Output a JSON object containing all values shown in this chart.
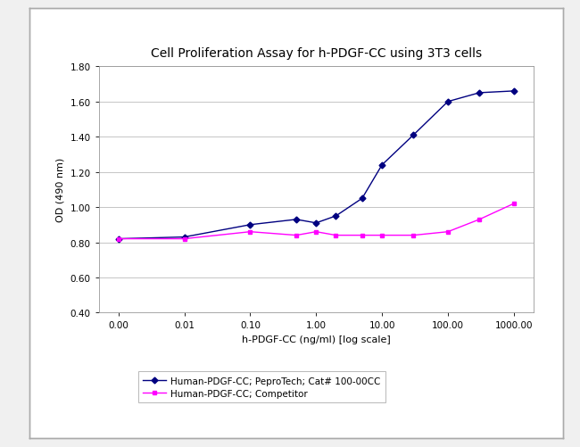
{
  "title": "Cell Proliferation Assay for h-PDGF-CC using 3T3 cells",
  "xlabel": "h-PDGF-CC (ng/ml) [log scale]",
  "ylabel": "OD (490 nm)",
  "series1_label": "Human-PDGF-CC; PeproTech; Cat# 100-00CC",
  "series2_label": "Human-PDGF-CC; Competitor",
  "series1_color": "#000080",
  "series2_color": "#FF00FF",
  "series1_x": [
    0.0,
    0.01,
    0.1,
    0.5,
    1.0,
    2.0,
    5.0,
    10.0,
    30.0,
    100.0,
    300.0,
    1000.0
  ],
  "series1_y": [
    0.82,
    0.83,
    0.9,
    0.93,
    0.91,
    0.95,
    1.05,
    1.24,
    1.41,
    1.6,
    1.65,
    1.66
  ],
  "series2_x": [
    0.0,
    0.01,
    0.1,
    0.5,
    1.0,
    2.0,
    5.0,
    10.0,
    30.0,
    100.0,
    300.0,
    1000.0
  ],
  "series2_y": [
    0.82,
    0.82,
    0.86,
    0.84,
    0.86,
    0.84,
    0.84,
    0.84,
    0.84,
    0.86,
    0.93,
    1.02
  ],
  "ylim": [
    0.4,
    1.8
  ],
  "yticks": [
    0.4,
    0.6,
    0.8,
    1.0,
    1.2,
    1.4,
    1.6,
    1.8
  ],
  "xtick_labels": [
    "0.00",
    "0.01",
    "0.10",
    "1.00",
    "10.00",
    "100.00",
    "1000.00"
  ],
  "xtick_vals": [
    0.0,
    0.01,
    0.1,
    1.0,
    10.0,
    100.0,
    1000.0
  ],
  "background_color": "#f0f0f0",
  "plot_bg_color": "#ffffff",
  "frame_color": "#ffffff",
  "grid_color": "#bbbbbb",
  "title_fontsize": 10,
  "axis_label_fontsize": 8,
  "tick_fontsize": 7.5,
  "legend_fontsize": 7.5
}
